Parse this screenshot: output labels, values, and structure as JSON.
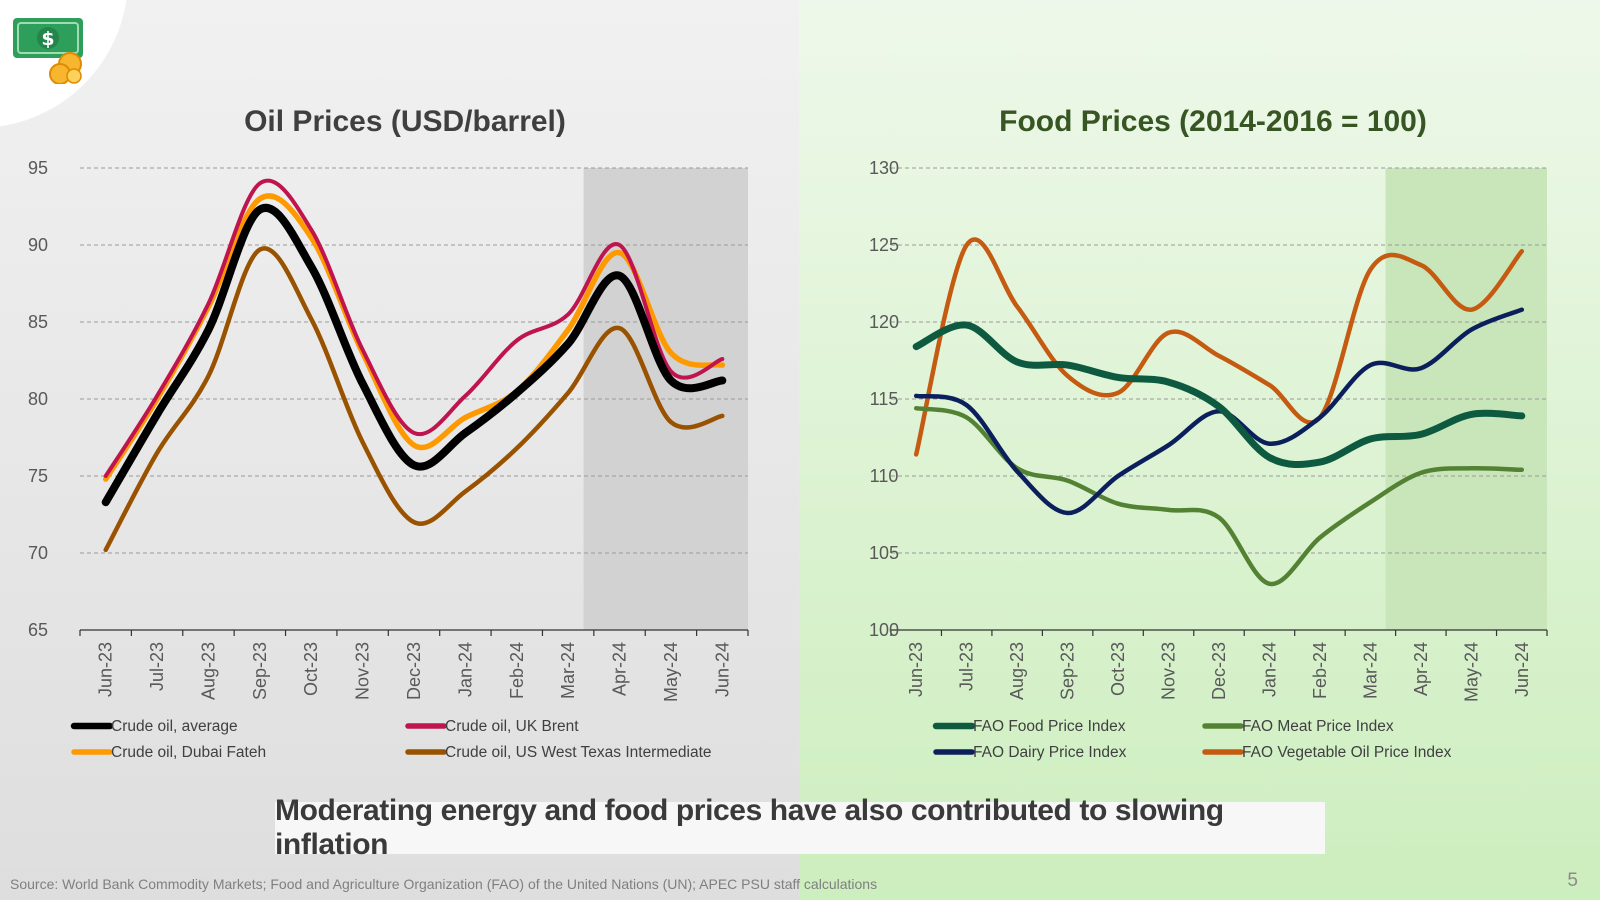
{
  "slide": {
    "banner": "Moderating energy and food prices have also contributed to slowing inflation",
    "source": "Source: World Bank Commodity Markets; Food and Agriculture Organization (FAO) of the United Nations (UN); APEC PSU staff calculations",
    "page_number": "5",
    "logo_icon": "money-icon"
  },
  "chart_data": [
    {
      "type": "line",
      "title": "Oil Prices (USD/barrel)",
      "categories": [
        "Jun-23",
        "Jul-23",
        "Aug-23",
        "Sep-23",
        "Oct-23",
        "Nov-23",
        "Dec-23",
        "Jan-24",
        "Feb-24",
        "Mar-24",
        "Apr-24",
        "May-24",
        "Jun-24"
      ],
      "ylim": [
        65,
        95
      ],
      "yticks": [
        65,
        70,
        75,
        80,
        85,
        90,
        95
      ],
      "grid": true,
      "shaded_from": "Apr-24",
      "legend_position": "bottom",
      "series": [
        {
          "name": "Crude oil, UK Brent",
          "color": "#c0144f",
          "values": [
            75.0,
            80.2,
            86.2,
            94.0,
            91.0,
            83.2,
            77.8,
            80.2,
            83.8,
            85.5,
            90.0,
            81.8,
            82.6
          ]
        },
        {
          "name": "Crude oil, Dubai Fateh",
          "color": "#ff9900",
          "values": [
            74.8,
            80.0,
            86.0,
            93.0,
            90.5,
            83.0,
            77.0,
            78.8,
            80.5,
            84.5,
            89.5,
            83.0,
            82.2
          ]
        },
        {
          "name": "Crude oil, US West Texas Intermediate",
          "color": "#995200",
          "values": [
            70.2,
            76.5,
            81.5,
            89.7,
            85.2,
            77.2,
            72.0,
            74.0,
            76.8,
            80.4,
            84.6,
            78.5,
            78.9
          ]
        },
        {
          "name": "Crude oil, average",
          "color": "#000000",
          "values": [
            73.3,
            79.0,
            84.5,
            92.3,
            88.6,
            81.0,
            75.7,
            77.8,
            80.4,
            83.6,
            88.0,
            81.2,
            81.2
          ]
        }
      ]
    },
    {
      "type": "line",
      "title": "Food Prices (2014-2016 = 100)",
      "categories": [
        "Jun-23",
        "Jul-23",
        "Aug-23",
        "Sep-23",
        "Oct-23",
        "Nov-23",
        "Dec-23",
        "Jan-24",
        "Feb-24",
        "Mar-24",
        "Apr-24",
        "May-24",
        "Jun-24"
      ],
      "ylim": [
        100,
        130
      ],
      "yticks": [
        100,
        105,
        110,
        115,
        120,
        125,
        130
      ],
      "grid": true,
      "shaded_from": "Apr-24",
      "legend_position": "bottom",
      "series": [
        {
          "name": "FAO Food Price Index",
          "color": "#0d5a40",
          "values": [
            118.4,
            119.8,
            117.4,
            117.2,
            116.4,
            116.1,
            114.5,
            111.2,
            110.9,
            112.4,
            112.7,
            114.0,
            113.9
          ]
        },
        {
          "name": "FAO Meat Price Index",
          "color": "#548235",
          "values": [
            114.4,
            113.8,
            110.5,
            109.7,
            108.2,
            107.8,
            107.3,
            103.0,
            106.0,
            108.3,
            110.2,
            110.5,
            110.4
          ]
        },
        {
          "name": "FAO Dairy Price Index",
          "color": "#0b1f5c",
          "values": [
            115.2,
            114.6,
            110.3,
            107.6,
            110.0,
            112.0,
            114.2,
            112.1,
            113.8,
            117.2,
            117.0,
            119.5,
            120.8
          ]
        },
        {
          "name": "FAO Vegetable Oil Price Index",
          "color": "#c55a11",
          "values": [
            111.4,
            125.0,
            121.0,
            116.5,
            115.4,
            119.3,
            117.8,
            115.9,
            113.8,
            123.4,
            123.7,
            120.8,
            124.6
          ]
        }
      ]
    }
  ]
}
